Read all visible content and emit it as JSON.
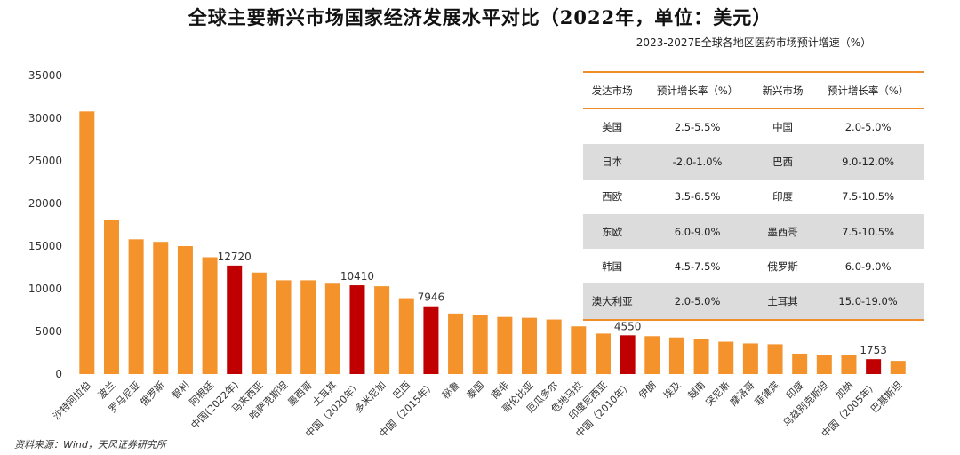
{
  "title": "全球主要新兴市场国家经济发展水平对比（2022年，单位：美元）",
  "source": "资料来源：Wind，天风证券研究所",
  "colors": {
    "bar": "#F4922C",
    "highlight": "#C00000",
    "table_rule": "#F08C2A",
    "shade": "#DCDCDC"
  },
  "chart_data": {
    "type": "bar",
    "title": "全球主要新兴市场国家经济发展水平对比（2022年，单位：美元）",
    "ylim": [
      0,
      35000
    ],
    "yticks": [
      "0",
      "5000",
      "10000",
      "15000",
      "20000",
      "25000",
      "30000",
      "35000"
    ],
    "categories": [
      "沙特阿拉伯",
      "波兰",
      "罗马尼亚",
      "俄罗斯",
      "智利",
      "阿根廷",
      "中国(2022年)",
      "马来西亚",
      "哈萨克斯坦",
      "墨西哥",
      "土耳其",
      "中国（2020年）",
      "多米尼加",
      "巴西",
      "中国（2015年）",
      "秘鲁",
      "泰国",
      "南非",
      "哥伦比亚",
      "厄瓜多尔",
      "危地马拉",
      "印度尼西亚",
      "中国（2010年）",
      "伊朗",
      "埃及",
      "越南",
      "突尼斯",
      "摩洛哥",
      "菲律宾",
      "印度",
      "乌兹别克斯坦",
      "加纳",
      "中国（2005年）",
      "巴基斯坦"
    ],
    "values": [
      30800,
      18100,
      15800,
      15500,
      15000,
      13700,
      12720,
      11900,
      11000,
      11000,
      10600,
      10410,
      10300,
      8900,
      7946,
      7100,
      6900,
      6700,
      6600,
      6400,
      5600,
      4750,
      4550,
      4450,
      4300,
      4150,
      3800,
      3600,
      3500,
      2400,
      2250,
      2250,
      1753,
      1550
    ],
    "highlight": [
      false,
      false,
      false,
      false,
      false,
      false,
      true,
      false,
      false,
      false,
      false,
      true,
      false,
      false,
      true,
      false,
      false,
      false,
      false,
      false,
      false,
      false,
      true,
      false,
      false,
      false,
      false,
      false,
      false,
      false,
      false,
      false,
      true,
      false
    ],
    "data_labels": [
      "",
      "",
      "",
      "",
      "",
      "",
      "12720",
      "",
      "",
      "",
      "",
      "10410",
      "",
      "",
      "7946",
      "",
      "",
      "",
      "",
      "",
      "",
      "",
      "4550",
      "",
      "",
      "",
      "",
      "",
      "",
      "",
      "",
      "",
      "1753",
      ""
    ]
  },
  "table": {
    "title": "2023-2027E全球各地区医药市场预计增速（%）",
    "headers": [
      "发达市场",
      "预计增长率（%）",
      "新兴市场",
      "预计增长率（%）"
    ],
    "rows": [
      [
        "美国",
        "2.5-5.5%",
        "中国",
        "2.0-5.0%"
      ],
      [
        "日本",
        "-2.0-1.0%",
        "巴西",
        "9.0-12.0%"
      ],
      [
        "西欧",
        "3.5-6.5%",
        "印度",
        "7.5-10.5%"
      ],
      [
        "东欧",
        "6.0-9.0%",
        "墨西哥",
        "7.5-10.5%"
      ],
      [
        "韩国",
        "4.5-7.5%",
        "俄罗斯",
        "6.0-9.0%"
      ],
      [
        "澳大利亚",
        "2.0-5.0%",
        "土耳其",
        "15.0-19.0%"
      ]
    ]
  }
}
